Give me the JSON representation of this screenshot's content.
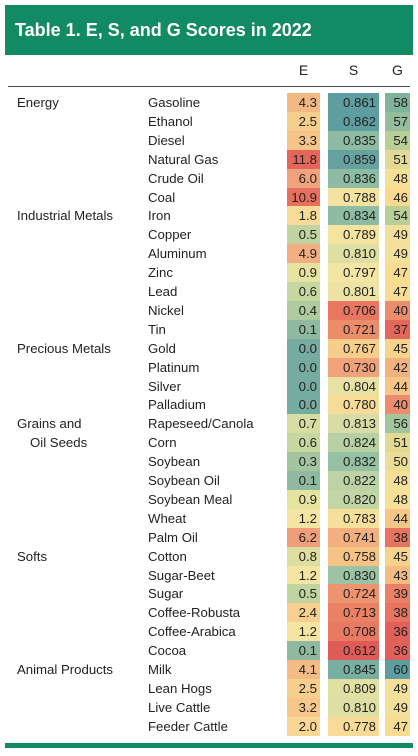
{
  "title": "Table 1.  E, S, and G Scores in 2022",
  "columns": [
    "E",
    "S",
    "G"
  ],
  "rows": [
    {
      "group": "Energy",
      "item": "Gasoline",
      "E": "4.3",
      "S": "0.861",
      "G": "58",
      "E_color": "#f3b984",
      "S_color": "#5f9ea0",
      "G_color": "#7fb39c"
    },
    {
      "group": "",
      "item": "Ethanol",
      "E": "2.5",
      "S": "0.862",
      "G": "57",
      "E_color": "#f7cf8d",
      "S_color": "#5f9ea0",
      "G_color": "#95bd9b"
    },
    {
      "group": "",
      "item": "Diesel",
      "E": "3.3",
      "S": "0.835",
      "G": "54",
      "E_color": "#f6c489",
      "S_color": "#8dbca2",
      "G_color": "#b9cf98"
    },
    {
      "group": "",
      "item": "Natural Gas",
      "E": "11.8",
      "S": "0.859",
      "G": "51",
      "E_color": "#e4685a",
      "S_color": "#68a2a0",
      "G_color": "#e1d994"
    },
    {
      "group": "",
      "item": "Crude Oil",
      "E": "6.0",
      "S": "0.836",
      "G": "48",
      "E_color": "#efa27c",
      "S_color": "#8dbca2",
      "G_color": "#f6df97"
    },
    {
      "group": "",
      "item": "Coal",
      "E": "10.9",
      "S": "0.788",
      "G": "46",
      "E_color": "#e66f5d",
      "S_color": "#f4e2a0",
      "G_color": "#f8d98f"
    },
    {
      "group": "Industrial Metals",
      "item": "Iron",
      "E": "1.8",
      "S": "0.834",
      "G": "54",
      "E_color": "#f8db98",
      "S_color": "#8dbca2",
      "G_color": "#b9cf98"
    },
    {
      "group": "",
      "item": "Copper",
      "E": "0.5",
      "S": "0.789",
      "G": "49",
      "E_color": "#bfd49f",
      "S_color": "#f5e3a0",
      "G_color": "#f3e19b"
    },
    {
      "group": "",
      "item": "Aluminum",
      "E": "4.9",
      "S": "0.810",
      "G": "49",
      "E_color": "#f1ae80",
      "S_color": "#dedfa4",
      "G_color": "#f3e19b"
    },
    {
      "group": "",
      "item": "Zinc",
      "E": "0.9",
      "S": "0.797",
      "G": "47",
      "E_color": "#e6e29f",
      "S_color": "#f3e6a5",
      "G_color": "#f8dc92"
    },
    {
      "group": "",
      "item": "Lead",
      "E": "0.6",
      "S": "0.801",
      "G": "47",
      "E_color": "#c6d8a0",
      "S_color": "#ece3a4",
      "G_color": "#f8dc92"
    },
    {
      "group": "",
      "item": "Nickel",
      "E": "0.4",
      "S": "0.706",
      "G": "40",
      "E_color": "#aecb9f",
      "S_color": "#e87660",
      "G_color": "#eb8c6c"
    },
    {
      "group": "",
      "item": "Tin",
      "E": "0.1",
      "S": "0.721",
      "G": "37",
      "E_color": "#8fbaa0",
      "S_color": "#ec8c68",
      "G_color": "#e4675c"
    },
    {
      "group": "Precious Metals",
      "item": "Gold",
      "E": "0.0",
      "S": "0.767",
      "G": "45",
      "E_color": "#76ab9f",
      "S_color": "#f7cd8b",
      "G_color": "#f6d28d"
    },
    {
      "group": "",
      "item": "Platinum",
      "E": "0.0",
      "S": "0.730",
      "G": "42",
      "E_color": "#76ab9f",
      "S_color": "#f1a27b",
      "G_color": "#f1b27f"
    },
    {
      "group": "",
      "item": "Silver",
      "E": "0.0",
      "S": "0.804",
      "G": "44",
      "E_color": "#76ab9f",
      "S_color": "#e8e3a4",
      "G_color": "#f5c687"
    },
    {
      "group": "",
      "item": "Palladium",
      "E": "0.0",
      "S": "0.780",
      "G": "40",
      "E_color": "#76ab9f",
      "S_color": "#f7dc98",
      "G_color": "#eb8c6c"
    },
    {
      "group": "Grains and",
      "group_line2": "Oil Seeds",
      "item": "Rapeseed/Canola",
      "E": "0.7",
      "S": "0.813",
      "G": "56",
      "E_color": "#d6dda2",
      "S_color": "#d8dda5",
      "G_color": "#a3c59b"
    },
    {
      "group": "",
      "item": "Corn",
      "E": "0.6",
      "S": "0.824",
      "G": "51",
      "E_color": "#c6d8a0",
      "S_color": "#b7d0a4",
      "G_color": "#e1d994"
    },
    {
      "group": "",
      "item": "Soybean",
      "E": "0.3",
      "S": "0.832",
      "G": "50",
      "E_color": "#a4c49f",
      "S_color": "#96c0a2",
      "G_color": "#ebdc96"
    },
    {
      "group": "",
      "item": "Soybean Oil",
      "E": "0.1",
      "S": "0.822",
      "G": "48",
      "E_color": "#8fbaa0",
      "S_color": "#bdd3a5",
      "G_color": "#f6df97"
    },
    {
      "group": "",
      "item": "Soybean Meal",
      "E": "0.9",
      "S": "0.820",
      "G": "48",
      "E_color": "#e6e29f",
      "S_color": "#c2d5a5",
      "G_color": "#f6df97"
    },
    {
      "group": "",
      "item": "Wheat",
      "E": "1.2",
      "S": "0.783",
      "G": "44",
      "E_color": "#f5e5a3",
      "S_color": "#f7df9c",
      "G_color": "#f5c687"
    },
    {
      "group": "",
      "item": "Palm Oil",
      "E": "6.2",
      "S": "0.741",
      "G": "38",
      "E_color": "#ee9e7a",
      "S_color": "#f3b07f",
      "G_color": "#e77360"
    },
    {
      "group": "Softs",
      "item": "Cotton",
      "E": "0.8",
      "S": "0.758",
      "G": "45",
      "E_color": "#ddde9f",
      "S_color": "#f6c387",
      "G_color": "#f6d28d"
    },
    {
      "group": "",
      "item": "Sugar-Beet",
      "E": "1.2",
      "S": "0.830",
      "G": "43",
      "E_color": "#f5e5a3",
      "S_color": "#9cc3a3",
      "G_color": "#f4bc83"
    },
    {
      "group": "",
      "item": "Sugar",
      "E": "0.5",
      "S": "0.724",
      "G": "39",
      "E_color": "#bfd49f",
      "S_color": "#ed9370",
      "G_color": "#e97f65"
    },
    {
      "group": "",
      "item": "Coffee-Robusta",
      "E": "2.4",
      "S": "0.713",
      "G": "38",
      "E_color": "#f7d090",
      "S_color": "#ea8064",
      "G_color": "#e77360"
    },
    {
      "group": "",
      "item": "Coffee-Arabica",
      "E": "1.2",
      "S": "0.708",
      "G": "36",
      "E_color": "#f5e5a3",
      "S_color": "#e87962",
      "G_color": "#e1605a"
    },
    {
      "group": "",
      "item": "Cocoa",
      "E": "0.1",
      "S": "0.612",
      "G": "36",
      "E_color": "#8fbaa0",
      "S_color": "#df5c56",
      "G_color": "#e1605a"
    },
    {
      "group": "Animal Products",
      "item": "Milk",
      "E": "4.1",
      "S": "0.845",
      "G": "60",
      "E_color": "#f4bc85",
      "S_color": "#78afa2",
      "G_color": "#5f9ea0"
    },
    {
      "group": "",
      "item": "Lean Hogs",
      "E": "2.5",
      "S": "0.809",
      "G": "49",
      "E_color": "#f7cf8d",
      "S_color": "#e0e0a5",
      "G_color": "#f3e19b"
    },
    {
      "group": "",
      "item": "Live Cattle",
      "E": "3.2",
      "S": "0.810",
      "G": "49",
      "E_color": "#f6c68a",
      "S_color": "#dedfa4",
      "G_color": "#f3e19b"
    },
    {
      "group": "",
      "item": "Feeder Cattle",
      "E": "2.0",
      "S": "0.778",
      "G": "47",
      "E_color": "#f8d894",
      "S_color": "#f8db97",
      "G_color": "#f8dc92"
    }
  ],
  "colors": {
    "header": "#128a63",
    "header_text": "#ffffff"
  }
}
